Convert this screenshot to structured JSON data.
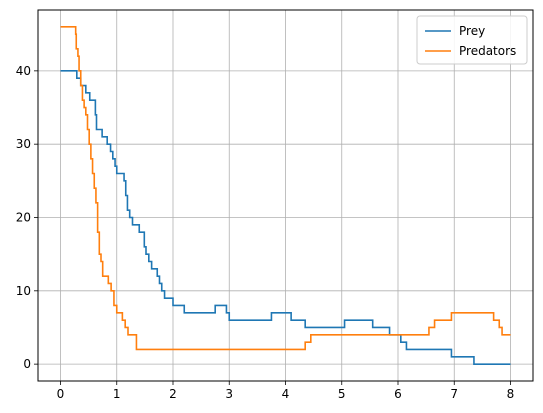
{
  "chart_data": {
    "type": "line",
    "xlim": [
      -0.4,
      8.4
    ],
    "ylim": [
      -2.3,
      48.3
    ],
    "xticks": [
      0,
      1,
      2,
      3,
      4,
      5,
      6,
      7,
      8
    ],
    "yticks": [
      0,
      10,
      20,
      30,
      40
    ],
    "grid": true,
    "legend_position": "top-right",
    "series": [
      {
        "name": "Prey",
        "color": "#1f77b4",
        "points": [
          [
            0,
            40
          ],
          [
            0.29,
            40
          ],
          [
            0.29,
            39
          ],
          [
            0.36,
            39
          ],
          [
            0.36,
            38
          ],
          [
            0.45,
            38
          ],
          [
            0.45,
            37
          ],
          [
            0.52,
            37
          ],
          [
            0.52,
            36
          ],
          [
            0.62,
            36
          ],
          [
            0.62,
            34
          ],
          [
            0.64,
            34
          ],
          [
            0.64,
            32
          ],
          [
            0.74,
            32
          ],
          [
            0.74,
            31
          ],
          [
            0.83,
            31
          ],
          [
            0.83,
            30
          ],
          [
            0.89,
            30
          ],
          [
            0.89,
            29
          ],
          [
            0.93,
            29
          ],
          [
            0.93,
            28
          ],
          [
            0.97,
            28
          ],
          [
            0.97,
            27
          ],
          [
            1.0,
            27
          ],
          [
            1.0,
            26
          ],
          [
            1.13,
            26
          ],
          [
            1.13,
            25
          ],
          [
            1.16,
            25
          ],
          [
            1.16,
            23
          ],
          [
            1.19,
            23
          ],
          [
            1.19,
            21
          ],
          [
            1.23,
            21
          ],
          [
            1.23,
            20
          ],
          [
            1.28,
            20
          ],
          [
            1.28,
            19
          ],
          [
            1.4,
            19
          ],
          [
            1.4,
            18
          ],
          [
            1.49,
            18
          ],
          [
            1.49,
            16
          ],
          [
            1.52,
            16
          ],
          [
            1.52,
            15
          ],
          [
            1.57,
            15
          ],
          [
            1.57,
            14
          ],
          [
            1.62,
            14
          ],
          [
            1.62,
            13
          ],
          [
            1.72,
            13
          ],
          [
            1.72,
            12
          ],
          [
            1.76,
            12
          ],
          [
            1.76,
            11
          ],
          [
            1.8,
            11
          ],
          [
            1.8,
            10
          ],
          [
            1.85,
            10
          ],
          [
            1.85,
            9
          ],
          [
            2.0,
            9
          ],
          [
            2.0,
            8
          ],
          [
            2.2,
            8
          ],
          [
            2.2,
            7
          ],
          [
            2.75,
            7
          ],
          [
            2.75,
            8
          ],
          [
            2.95,
            8
          ],
          [
            2.95,
            7
          ],
          [
            3.0,
            7
          ],
          [
            3.0,
            6
          ],
          [
            3.75,
            6
          ],
          [
            3.75,
            7
          ],
          [
            4.1,
            7
          ],
          [
            4.1,
            6
          ],
          [
            4.35,
            6
          ],
          [
            4.35,
            5
          ],
          [
            5.05,
            5
          ],
          [
            5.05,
            6
          ],
          [
            5.55,
            6
          ],
          [
            5.55,
            5
          ],
          [
            5.85,
            5
          ],
          [
            5.85,
            4
          ],
          [
            6.05,
            4
          ],
          [
            6.05,
            3
          ],
          [
            6.15,
            3
          ],
          [
            6.15,
            2
          ],
          [
            6.95,
            2
          ],
          [
            6.95,
            1
          ],
          [
            7.35,
            1
          ],
          [
            7.35,
            0
          ],
          [
            8.0,
            0
          ]
        ]
      },
      {
        "name": "Predators",
        "color": "#ff7f0e",
        "points": [
          [
            0,
            46
          ],
          [
            0.27,
            46
          ],
          [
            0.27,
            45
          ],
          [
            0.28,
            45
          ],
          [
            0.28,
            43
          ],
          [
            0.31,
            43
          ],
          [
            0.31,
            42
          ],
          [
            0.33,
            42
          ],
          [
            0.33,
            40
          ],
          [
            0.36,
            40
          ],
          [
            0.36,
            38
          ],
          [
            0.39,
            38
          ],
          [
            0.39,
            36
          ],
          [
            0.42,
            36
          ],
          [
            0.42,
            35
          ],
          [
            0.45,
            35
          ],
          [
            0.45,
            34
          ],
          [
            0.48,
            34
          ],
          [
            0.48,
            32
          ],
          [
            0.51,
            32
          ],
          [
            0.51,
            30
          ],
          [
            0.54,
            30
          ],
          [
            0.54,
            28
          ],
          [
            0.57,
            28
          ],
          [
            0.57,
            26
          ],
          [
            0.6,
            26
          ],
          [
            0.6,
            24
          ],
          [
            0.63,
            24
          ],
          [
            0.63,
            22
          ],
          [
            0.66,
            22
          ],
          [
            0.66,
            18
          ],
          [
            0.69,
            18
          ],
          [
            0.69,
            15
          ],
          [
            0.72,
            15
          ],
          [
            0.72,
            14
          ],
          [
            0.75,
            14
          ],
          [
            0.75,
            12
          ],
          [
            0.85,
            12
          ],
          [
            0.85,
            11
          ],
          [
            0.9,
            11
          ],
          [
            0.9,
            10
          ],
          [
            0.95,
            10
          ],
          [
            0.95,
            8
          ],
          [
            1.0,
            8
          ],
          [
            1.0,
            7
          ],
          [
            1.1,
            7
          ],
          [
            1.1,
            6
          ],
          [
            1.15,
            6
          ],
          [
            1.15,
            5
          ],
          [
            1.2,
            5
          ],
          [
            1.2,
            4
          ],
          [
            1.35,
            4
          ],
          [
            1.35,
            2
          ],
          [
            4.35,
            2
          ],
          [
            4.35,
            3
          ],
          [
            4.45,
            3
          ],
          [
            4.45,
            4
          ],
          [
            6.55,
            4
          ],
          [
            6.55,
            5
          ],
          [
            6.65,
            5
          ],
          [
            6.65,
            6
          ],
          [
            6.95,
            6
          ],
          [
            6.95,
            7
          ],
          [
            7.7,
            7
          ],
          [
            7.7,
            6
          ],
          [
            7.8,
            6
          ],
          [
            7.8,
            5
          ],
          [
            7.85,
            5
          ],
          [
            7.85,
            4
          ],
          [
            8.0,
            4
          ]
        ]
      }
    ]
  }
}
